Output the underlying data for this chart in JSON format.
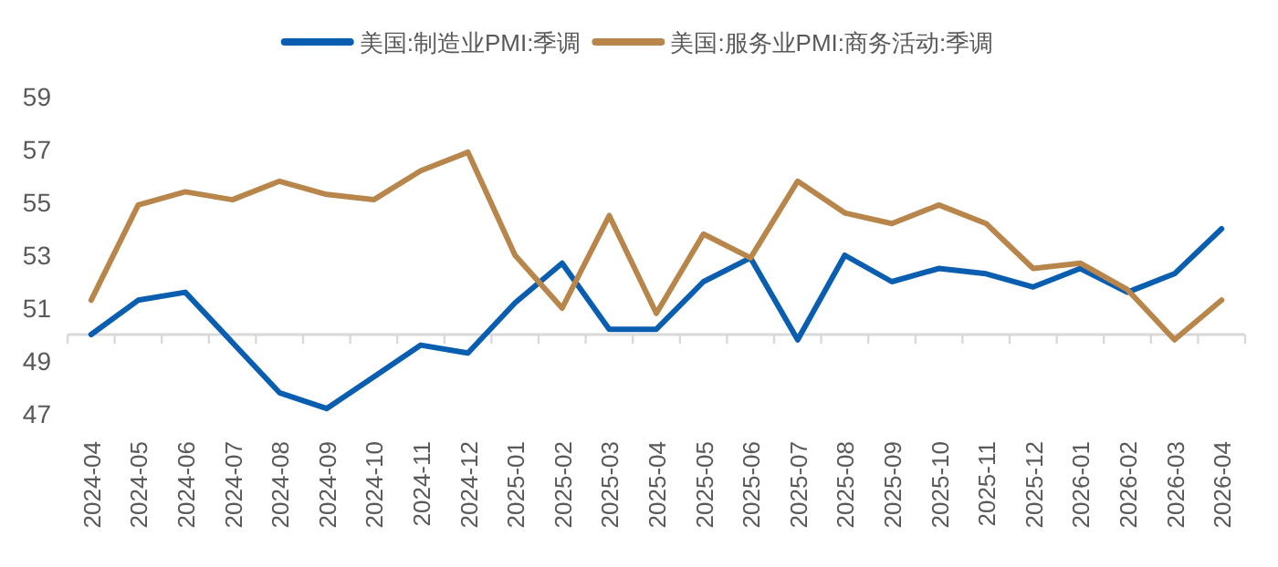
{
  "chart_data": {
    "type": "line",
    "categories": [
      "2024-04",
      "2024-05",
      "2024-06",
      "2024-07",
      "2024-08",
      "2024-09",
      "2024-10",
      "2024-11",
      "2024-12",
      "2025-01",
      "2025-02",
      "2025-03",
      "2025-04",
      "2025-05",
      "2025-06",
      "2025-07",
      "2025-08",
      "2025-09",
      "2025-10",
      "2025-11",
      "2025-12",
      "2026-01",
      "2026-02",
      "2026-03",
      "2026-04"
    ],
    "series": [
      {
        "name": "美国:制造业PMI:季调",
        "color": "#0a5eb0",
        "values": [
          50.0,
          51.3,
          51.6,
          49.7,
          47.8,
          47.2,
          48.4,
          49.6,
          49.3,
          51.2,
          52.7,
          50.2,
          50.2,
          52.0,
          52.9,
          49.8,
          53.0,
          52.0,
          52.5,
          52.3,
          51.8,
          52.5,
          51.6,
          52.3,
          54.0
        ]
      },
      {
        "name": "美国:服务业PMI:商务活动:季调",
        "color": "#b8864b",
        "values": [
          51.3,
          54.9,
          55.4,
          55.1,
          55.8,
          55.3,
          55.1,
          56.2,
          56.9,
          53.0,
          51.0,
          54.5,
          50.8,
          53.8,
          52.9,
          55.8,
          54.6,
          54.2,
          54.9,
          54.2,
          52.5,
          52.7,
          51.7,
          49.8,
          51.3
        ]
      }
    ],
    "ylim": [
      47,
      59
    ],
    "yticks": [
      47,
      49,
      51,
      53,
      55,
      57,
      59
    ],
    "ref_lines": [
      {
        "axis": "y",
        "value": 50,
        "color": "#d9d9d9"
      }
    ],
    "grid": false,
    "legend": "top",
    "marker": "none",
    "line_style": "solid"
  }
}
